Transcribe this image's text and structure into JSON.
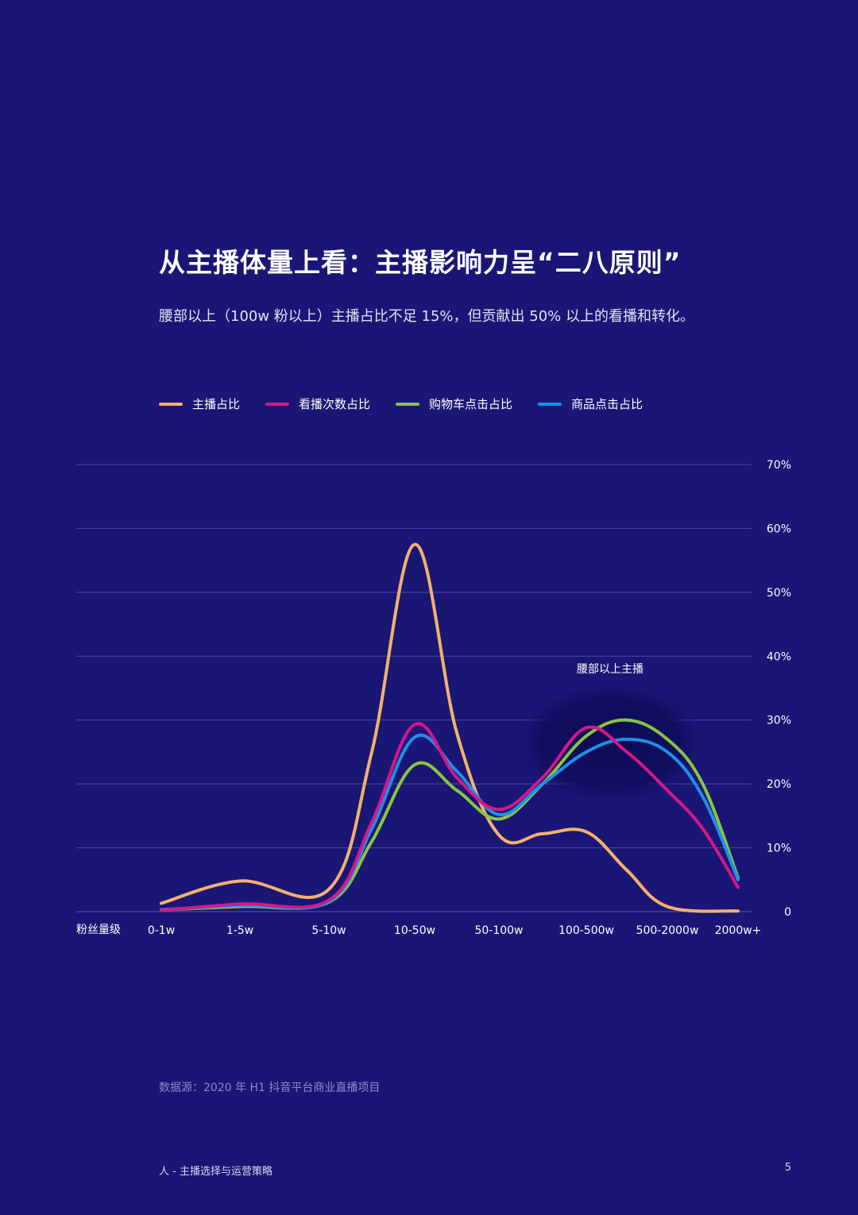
{
  "page": {
    "title": "从主播体量上看：主播影响力呈“二八原则”",
    "subtitle": "腰部以上（100w 粉以上）主播占比不足 15%，但贡献出 50% 以上的看播和转化。",
    "source": "数据源：2020 年 H1 抖音平台商业直播项目",
    "footer_left": "人 - 主播选择与运营策略",
    "page_number": "5"
  },
  "chart_data": {
    "type": "line",
    "xlabel": "粉丝量级",
    "categories": [
      "0-1w",
      "1-5w",
      "5-10w",
      "10-50w",
      "50-100w",
      "100-500w",
      "500-2000w",
      "2000w+"
    ],
    "y_ticks": [
      "0",
      "10%",
      "20%",
      "30%",
      "40%",
      "50%",
      "60%",
      "70%"
    ],
    "ylim": [
      0,
      70
    ],
    "grid": true,
    "legend_position": "top-left",
    "annotation": "腰部以上主播",
    "series": [
      {
        "name": "主播占比",
        "color": "#f5b06e",
        "points": [
          [
            0,
            1.3
          ],
          [
            1,
            4.8
          ],
          [
            2,
            3.5
          ],
          [
            2.5,
            25
          ],
          [
            3,
            57.5
          ],
          [
            3.5,
            28
          ],
          [
            4,
            12
          ],
          [
            4.5,
            12.2
          ],
          [
            5,
            12.5
          ],
          [
            5.5,
            6.5
          ],
          [
            6,
            0.8
          ],
          [
            7,
            0.1
          ]
        ]
      },
      {
        "name": "看播次数占比",
        "color": "#d4178a",
        "points": [
          [
            0,
            0.2
          ],
          [
            1,
            1.2
          ],
          [
            2,
            1.8
          ],
          [
            2.5,
            14
          ],
          [
            3,
            29.3
          ],
          [
            3.5,
            21
          ],
          [
            4,
            16
          ],
          [
            4.5,
            21
          ],
          [
            5,
            28.8
          ],
          [
            5.5,
            25
          ],
          [
            6,
            19
          ],
          [
            6.5,
            13
          ],
          [
            7,
            3.8
          ]
        ]
      },
      {
        "name": "购物车点击占比",
        "color": "#8bc43e",
        "points": [
          [
            0,
            0.3
          ],
          [
            1,
            0.8
          ],
          [
            2,
            1.5
          ],
          [
            2.5,
            11
          ],
          [
            3,
            23
          ],
          [
            3.5,
            19
          ],
          [
            4,
            14.5
          ],
          [
            4.5,
            20
          ],
          [
            5,
            27.5
          ],
          [
            5.5,
            30
          ],
          [
            6,
            27
          ],
          [
            6.5,
            20
          ],
          [
            7,
            5.3
          ]
        ]
      },
      {
        "name": "商品点击占比",
        "color": "#1e90e8",
        "points": [
          [
            0,
            0.3
          ],
          [
            1,
            1
          ],
          [
            2,
            1.6
          ],
          [
            2.5,
            13
          ],
          [
            3,
            27.3
          ],
          [
            3.5,
            22
          ],
          [
            4,
            15.2
          ],
          [
            4.5,
            20
          ],
          [
            5,
            25
          ],
          [
            5.5,
            27
          ],
          [
            6,
            25
          ],
          [
            6.5,
            18
          ],
          [
            7,
            5
          ]
        ]
      }
    ]
  }
}
